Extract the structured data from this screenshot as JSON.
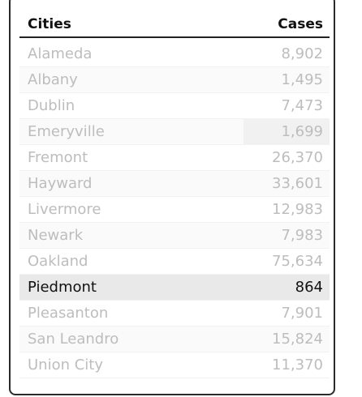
{
  "table": {
    "headers": {
      "city": "Cities",
      "cases": "Cases"
    },
    "rows": [
      {
        "city": "Alameda",
        "cases": "8,902"
      },
      {
        "city": "Albany",
        "cases": "1,495"
      },
      {
        "city": "Dublin",
        "cases": "7,473"
      },
      {
        "city": "Emeryville",
        "cases": "1,699"
      },
      {
        "city": "Fremont",
        "cases": "26,370"
      },
      {
        "city": "Hayward",
        "cases": "33,601"
      },
      {
        "city": "Livermore",
        "cases": "12,983"
      },
      {
        "city": "Newark",
        "cases": "7,983"
      },
      {
        "city": "Oakland",
        "cases": "75,634"
      },
      {
        "city": "Piedmont",
        "cases": "864"
      },
      {
        "city": "Pleasanton",
        "cases": "7,901"
      },
      {
        "city": "San Leandro",
        "cases": "15,824"
      },
      {
        "city": "Union City",
        "cases": "11,370"
      }
    ],
    "selected_city": "Piedmont"
  }
}
